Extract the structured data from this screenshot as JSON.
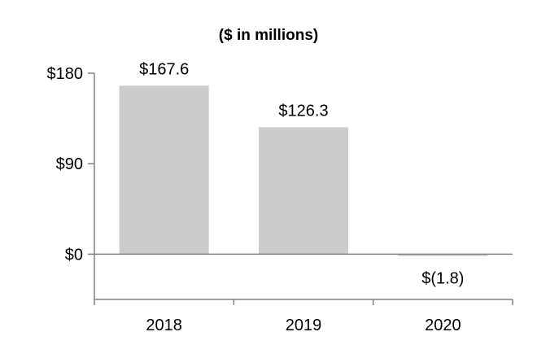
{
  "chart_data": {
    "type": "bar",
    "title": "($ in millions)",
    "categories": [
      "2018",
      "2019",
      "2020"
    ],
    "values": [
      167.6,
      126.3,
      -1.8
    ],
    "data_labels": [
      "$167.6",
      "$126.3",
      "$(1.8)"
    ],
    "y_ticks": [
      0,
      90,
      180
    ],
    "y_tick_labels": [
      "$0",
      "$90",
      "$180"
    ],
    "ylim": [
      -45,
      180
    ],
    "xlabel": "",
    "ylabel": "",
    "grid": false,
    "bar_color": "#cccccc",
    "axis_color": "#808080"
  }
}
